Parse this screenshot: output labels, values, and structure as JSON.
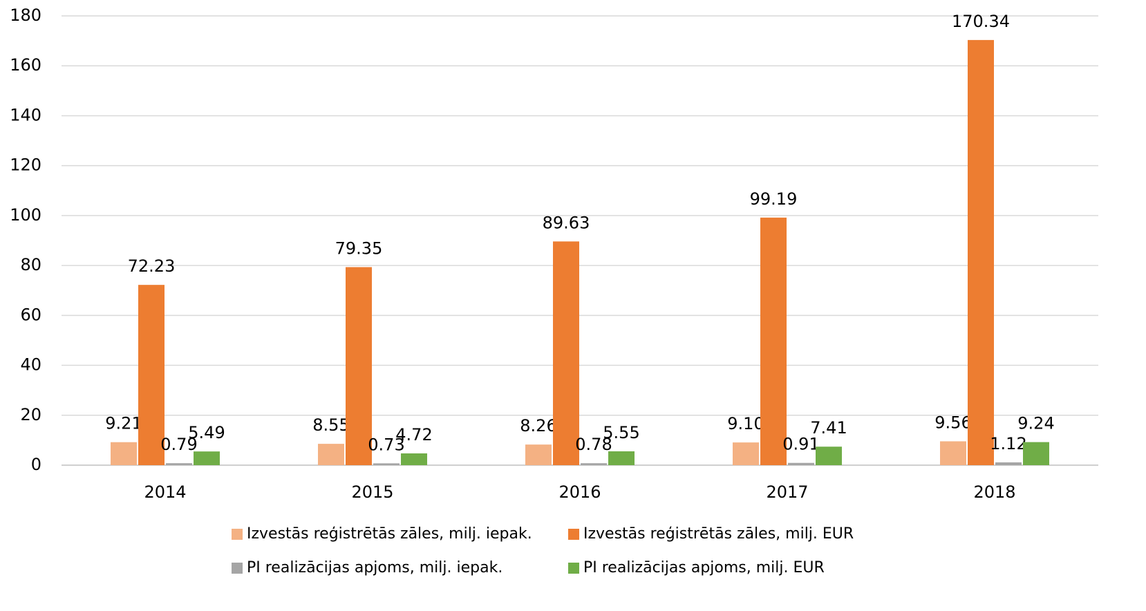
{
  "chart_data": {
    "type": "bar",
    "categories": [
      "2014",
      "2015",
      "2016",
      "2017",
      "2018"
    ],
    "series": [
      {
        "name": "Izvestās reģistrētās zāles, milj. iepak.",
        "color": "#f4b183",
        "values": [
          9.21,
          8.55,
          8.26,
          9.1,
          9.56
        ],
        "value_labels": [
          "9.21",
          "8.55",
          "8.26",
          "9.10",
          "9.56"
        ]
      },
      {
        "name": "Izvestās reģistrētās zāles, milj. EUR",
        "color": "#ed7d31",
        "values": [
          72.23,
          79.35,
          89.63,
          99.19,
          170.34
        ],
        "value_labels": [
          "72.23",
          "79.35",
          "89.63",
          "99.19",
          "170.34"
        ]
      },
      {
        "name": "PI realizācijas apjoms, milj. iepak.",
        "color": "#a5a5a5",
        "values": [
          0.79,
          0.73,
          0.78,
          0.91,
          1.12
        ],
        "value_labels": [
          "0.79",
          "0.73",
          "0.78",
          "0.91",
          "1.12"
        ]
      },
      {
        "name": "PI realizācijas apjoms, milj. EUR",
        "color": "#70ad47",
        "values": [
          5.49,
          4.72,
          5.55,
          7.41,
          9.24
        ],
        "value_labels": [
          "5.49",
          "4.72",
          "5.55",
          "7.41",
          "9.24"
        ]
      }
    ],
    "ylim": [
      0,
      180
    ],
    "yticks": [
      0,
      20,
      40,
      60,
      80,
      100,
      120,
      140,
      160,
      180
    ],
    "grid": true,
    "legend": "bottom"
  }
}
